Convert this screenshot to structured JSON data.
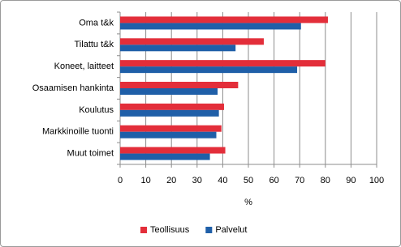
{
  "chart_data": {
    "type": "hbar",
    "categories": [
      "Oma t&k",
      "Tilattu t&k",
      "Koneet, laitteet",
      "Osaamisen hankinta",
      "Koulutus",
      "Markkinoille tuonti",
      "Muut toimet"
    ],
    "series": [
      {
        "name": "Teollisuus",
        "color": "#e32e3a",
        "values": [
          81,
          56,
          80,
          46,
          40.5,
          39.5,
          41
        ]
      },
      {
        "name": "Palvelut",
        "color": "#1f5fa8",
        "values": [
          70.5,
          45,
          69,
          38,
          38.5,
          37.5,
          35
        ]
      }
    ],
    "xlabel": "%",
    "xlim": [
      0,
      100
    ],
    "xticks": [
      0,
      10,
      20,
      30,
      40,
      50,
      60,
      70,
      80,
      90,
      100
    ],
    "grid": true,
    "legend": "bottom"
  }
}
